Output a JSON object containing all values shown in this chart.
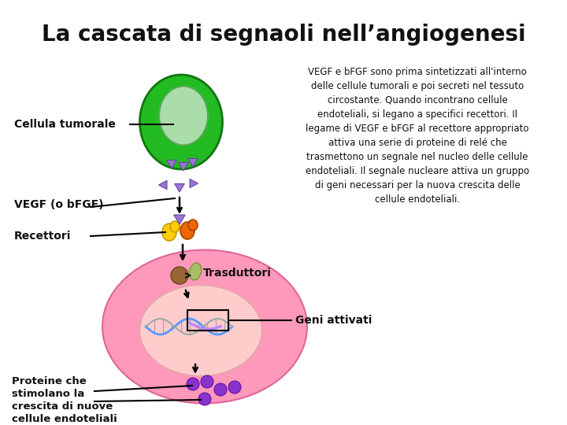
{
  "title": "La cascata di segnaoli nell’angiogenesi",
  "background_color": "#ffffff",
  "description_text": "VEGF e bFGF sono prima sintetizzati all'interno\ndelle cellule tumorali e poi secreti nel tessuto\ncircostante. Quando incontrano cellule\nendoteliali, si legano a specifici recettori. Il\nlegame di VEGF e bFGF al recettore appropriato\nattiva una serie di proteine di relé che\ntrasmettono un segnale nel nucleo delle cellule\nendoteliali. Il segnale nucleare attiva un gruppo\ndi geni necessari per la nuova crescita delle\ncellule endoteliali.",
  "label_cellula": "Cellula tumorale",
  "label_vegf": "VEGF (o bFGF)",
  "label_recettori": "Recettori",
  "label_trasduttori": "Trasduttori",
  "label_geni": "Geni attivati",
  "label_proteine": "Proteine che\nstimolano la\ncrescita di nuove\ncellule endoteliali",
  "tumor_cell_color": "#22bb22",
  "tumor_nucleus_color": "#aaddaa",
  "endothelial_cell_color": "#ff99bb",
  "endothelial_nucleus_color": "#ffcccc",
  "vegf_tri_color": "#9977cc",
  "protein_dot_color": "#8833cc",
  "receptor_yellow": "#ffcc00",
  "receptor_orange": "#ee6600",
  "transducer_brown": "#996633",
  "transducer_green": "#aabb66",
  "dna_blue": "#5599ff",
  "dna_purple": "#bb88ff",
  "dna_gray": "#99aaaa"
}
